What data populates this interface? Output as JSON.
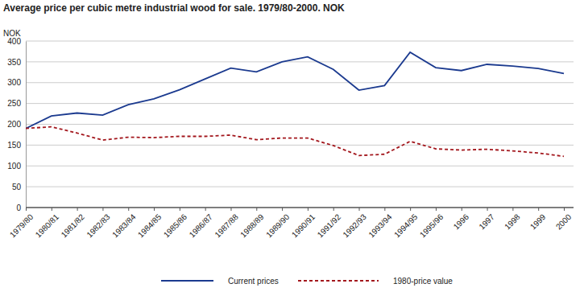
{
  "chart_data": {
    "type": "line",
    "title": "Average price per cubic metre industrial wood for sale. 1979/80-2000. NOK",
    "y_label": "NOK",
    "categories": [
      "1979/80",
      "1980/81",
      "1981/82",
      "1982/83",
      "1983/84",
      "1984/85",
      "1985/86",
      "1986/87",
      "1987/88",
      "1988/89",
      "1989/90",
      "1990/91",
      "1991/92",
      "1992/93",
      "1993/94",
      "1994/95",
      "1995/96",
      "1996",
      "1997",
      "1998",
      "1999",
      "2000"
    ],
    "series": [
      {
        "name": "Current prices",
        "color": "#1b3a8f",
        "line_style": "solid",
        "values": [
          190,
          220,
          227,
          222,
          247,
          261,
          283,
          309,
          335,
          326,
          350,
          362,
          332,
          282,
          293,
          373,
          336,
          329,
          344,
          340,
          334,
          322
        ]
      },
      {
        "name": "1980-price value",
        "color": "#a3171d",
        "line_style": "dashed",
        "values": [
          190,
          194,
          179,
          162,
          169,
          168,
          171,
          171,
          174,
          163,
          167,
          167,
          149,
          125,
          128,
          159,
          141,
          138,
          140,
          136,
          131,
          123
        ]
      }
    ],
    "ylim": [
      0,
      400
    ],
    "yticks": [
      0,
      50,
      100,
      150,
      200,
      250,
      300,
      350,
      400
    ],
    "grid": true,
    "legend": "bottom"
  }
}
